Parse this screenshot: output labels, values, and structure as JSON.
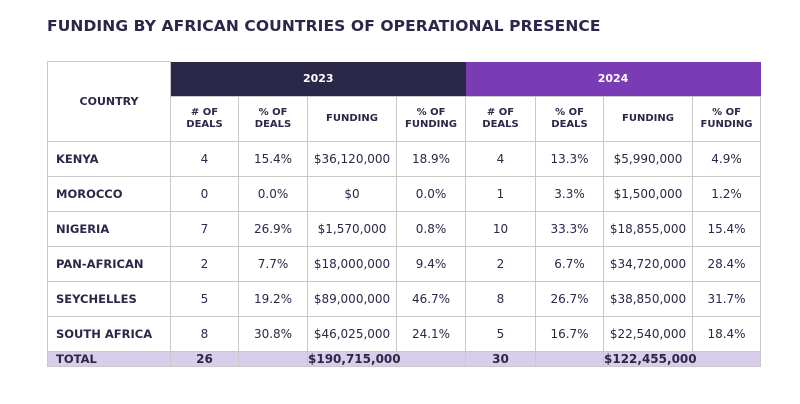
{
  "title": "FUNDING BY AFRICAN COUNTRIES OF OPERATIONAL PRESENCE",
  "table": {
    "country_header": "COUNTRY",
    "groups": [
      "2023",
      "2024"
    ],
    "subheaders": [
      "# OF DEALS",
      "% OF DEALS",
      "FUNDING",
      "% OF FUNDING",
      "# OF DEALS",
      "% OF DEALS",
      "FUNDING",
      "% OF FUNDING"
    ],
    "rows": [
      [
        "KENYA",
        "4",
        "15.4%",
        "$36,120,000",
        "18.9%",
        "4",
        "13.3%",
        "$5,990,000",
        "4.9%"
      ],
      [
        "MOROCCO",
        "0",
        "0.0%",
        "$0",
        "0.0%",
        "1",
        "3.3%",
        "$1,500,000",
        "1.2%"
      ],
      [
        "NIGERIA",
        "7",
        "26.9%",
        "$1,570,000",
        "0.8%",
        "10",
        "33.3%",
        "$18,855,000",
        "15.4%"
      ],
      [
        "PAN-AFRICAN",
        "2",
        "7.7%",
        "$18,000,000",
        "9.4%",
        "2",
        "6.7%",
        "$34,720,000",
        "28.4%"
      ],
      [
        "SEYCHELLES",
        "5",
        "19.2%",
        "$89,000,000",
        "46.7%",
        "8",
        "26.7%",
        "$38,850,000",
        "31.7%"
      ],
      [
        "SOUTH AFRICA",
        "8",
        "30.8%",
        "$46,025,000",
        "24.1%",
        "5",
        "16.7%",
        "$22,540,000",
        "18.4%"
      ]
    ],
    "total": {
      "label": "TOTAL",
      "deals_2023": "26",
      "funding_2023": "$190,715,000",
      "deals_2024": "30",
      "funding_2024": "$122,455,000"
    }
  }
}
